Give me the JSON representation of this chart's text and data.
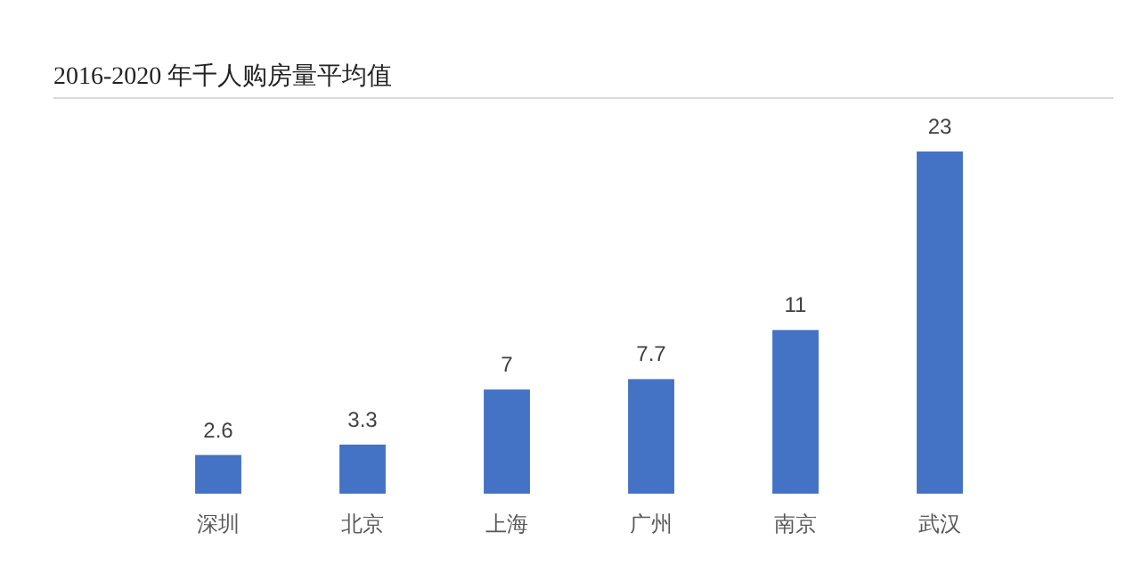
{
  "chart_data": {
    "type": "bar",
    "title": "2016-2020 年千人购房量平均值",
    "categories": [
      "深圳",
      "北京",
      "上海",
      "广州",
      "南京",
      "武汉"
    ],
    "values": [
      2.6,
      3.3,
      7,
      7.7,
      11,
      23
    ],
    "color": "#4472c4",
    "data_labels": true
  }
}
